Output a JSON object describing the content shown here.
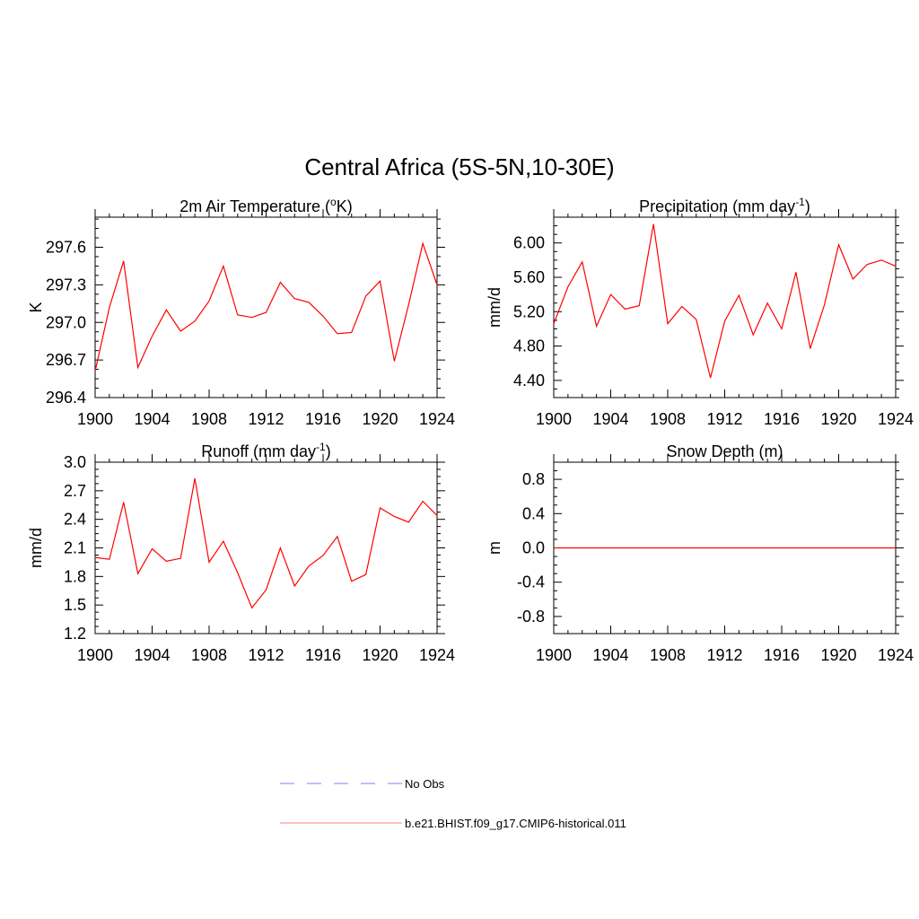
{
  "title": "Central Africa (5S-5N,10-30E)",
  "legend": [
    {
      "label": "No Obs",
      "color": "#9999ff",
      "dashed": true
    },
    {
      "label": "b.e21.BHIST.f09_g17.CMIP6-historical.011",
      "color": "#ff9999",
      "dashed": false
    }
  ],
  "chart_data": [
    {
      "type": "line",
      "title": "2m Air Temperature (°K)",
      "title_parts": [
        "2m Air Temperature (",
        "o",
        "K)"
      ],
      "ylabel": "K",
      "xlim": [
        1900,
        1924
      ],
      "ylim": [
        296.4,
        297.84
      ],
      "x_ticks": [
        1900,
        1904,
        1908,
        1912,
        1916,
        1920,
        1924
      ],
      "y_ticks": [
        296.4,
        296.7,
        297.0,
        297.3,
        297.6
      ],
      "y_tick_labels": [
        "296.4",
        "296.7",
        "297.0",
        "297.3",
        "297.6"
      ],
      "series": [
        {
          "color": "#ff0000",
          "x": [
            1900,
            1901,
            1902,
            1903,
            1904,
            1905,
            1906,
            1907,
            1908,
            1909,
            1910,
            1911,
            1912,
            1913,
            1914,
            1915,
            1916,
            1917,
            1918,
            1919,
            1920,
            1921,
            1922,
            1923,
            1924
          ],
          "y": [
            296.61,
            297.12,
            297.49,
            296.64,
            296.89,
            297.1,
            296.93,
            297.01,
            297.17,
            297.45,
            297.06,
            297.04,
            297.08,
            297.32,
            297.19,
            297.16,
            297.05,
            296.91,
            296.92,
            297.21,
            297.33,
            296.69,
            297.14,
            297.63,
            297.3
          ]
        }
      ]
    },
    {
      "type": "line",
      "title": "Precipitation (mm day-1)",
      "title_parts": [
        "Precipitation (mm day",
        "-1",
        ")"
      ],
      "ylabel": "mm/d",
      "xlim": [
        1900,
        1924
      ],
      "ylim": [
        4.2,
        6.3
      ],
      "x_ticks": [
        1900,
        1904,
        1908,
        1912,
        1916,
        1920,
        1924
      ],
      "y_ticks": [
        4.4,
        4.8,
        5.2,
        5.6,
        6.0
      ],
      "y_tick_labels": [
        "4.40",
        "4.80",
        "5.20",
        "5.60",
        "6.00"
      ],
      "series": [
        {
          "color": "#ff0000",
          "x": [
            1900,
            1901,
            1902,
            1903,
            1904,
            1905,
            1906,
            1907,
            1908,
            1909,
            1910,
            1911,
            1912,
            1913,
            1914,
            1915,
            1916,
            1917,
            1918,
            1919,
            1920,
            1921,
            1922,
            1923,
            1924
          ],
          "y": [
            5.06,
            5.49,
            5.78,
            5.03,
            5.4,
            5.23,
            5.27,
            6.22,
            5.06,
            5.26,
            5.11,
            4.43,
            5.09,
            5.39,
            4.93,
            5.3,
            5.0,
            5.66,
            4.77,
            5.28,
            5.98,
            5.58,
            5.75,
            5.8,
            5.73
          ]
        }
      ]
    },
    {
      "type": "line",
      "title": "Runoff (mm day-1)",
      "title_parts": [
        "Runoff (mm day",
        "-1",
        ")"
      ],
      "ylabel": "mm/d",
      "xlim": [
        1900,
        1924
      ],
      "ylim": [
        1.2,
        3.0
      ],
      "x_ticks": [
        1900,
        1904,
        1908,
        1912,
        1916,
        1920,
        1924
      ],
      "y_ticks": [
        1.2,
        1.5,
        1.8,
        2.1,
        2.4,
        2.7,
        3.0
      ],
      "y_tick_labels": [
        "1.2",
        "1.5",
        "1.8",
        "2.1",
        "2.4",
        "2.7",
        "3.0"
      ],
      "series": [
        {
          "color": "#ff0000",
          "x": [
            1900,
            1901,
            1902,
            1903,
            1904,
            1905,
            1906,
            1907,
            1908,
            1909,
            1910,
            1911,
            1912,
            1913,
            1914,
            1915,
            1916,
            1917,
            1918,
            1919,
            1920,
            1921,
            1922,
            1923,
            1924
          ],
          "y": [
            2.0,
            1.98,
            2.58,
            1.83,
            2.09,
            1.96,
            1.99,
            2.83,
            1.95,
            2.17,
            1.84,
            1.47,
            1.66,
            2.1,
            1.7,
            1.91,
            2.02,
            2.22,
            1.75,
            1.82,
            2.52,
            2.43,
            2.37,
            2.59,
            2.44
          ]
        }
      ]
    },
    {
      "type": "line",
      "title": "Snow Depth (m)",
      "title_parts": [
        "Snow Depth (m)",
        "",
        ""
      ],
      "ylabel": "m",
      "xlim": [
        1900,
        1924
      ],
      "ylim": [
        -1.0,
        1.0
      ],
      "x_ticks": [
        1900,
        1904,
        1908,
        1912,
        1916,
        1920,
        1924
      ],
      "y_ticks": [
        -0.8,
        -0.4,
        0.0,
        0.4,
        0.8
      ],
      "y_tick_labels": [
        "-0.8",
        "-0.4",
        "0.0",
        "0.4",
        "0.8"
      ],
      "series": [
        {
          "color": "#ff0000",
          "x": [
            1900,
            1924
          ],
          "y": [
            0.0,
            0.0
          ]
        }
      ]
    }
  ]
}
